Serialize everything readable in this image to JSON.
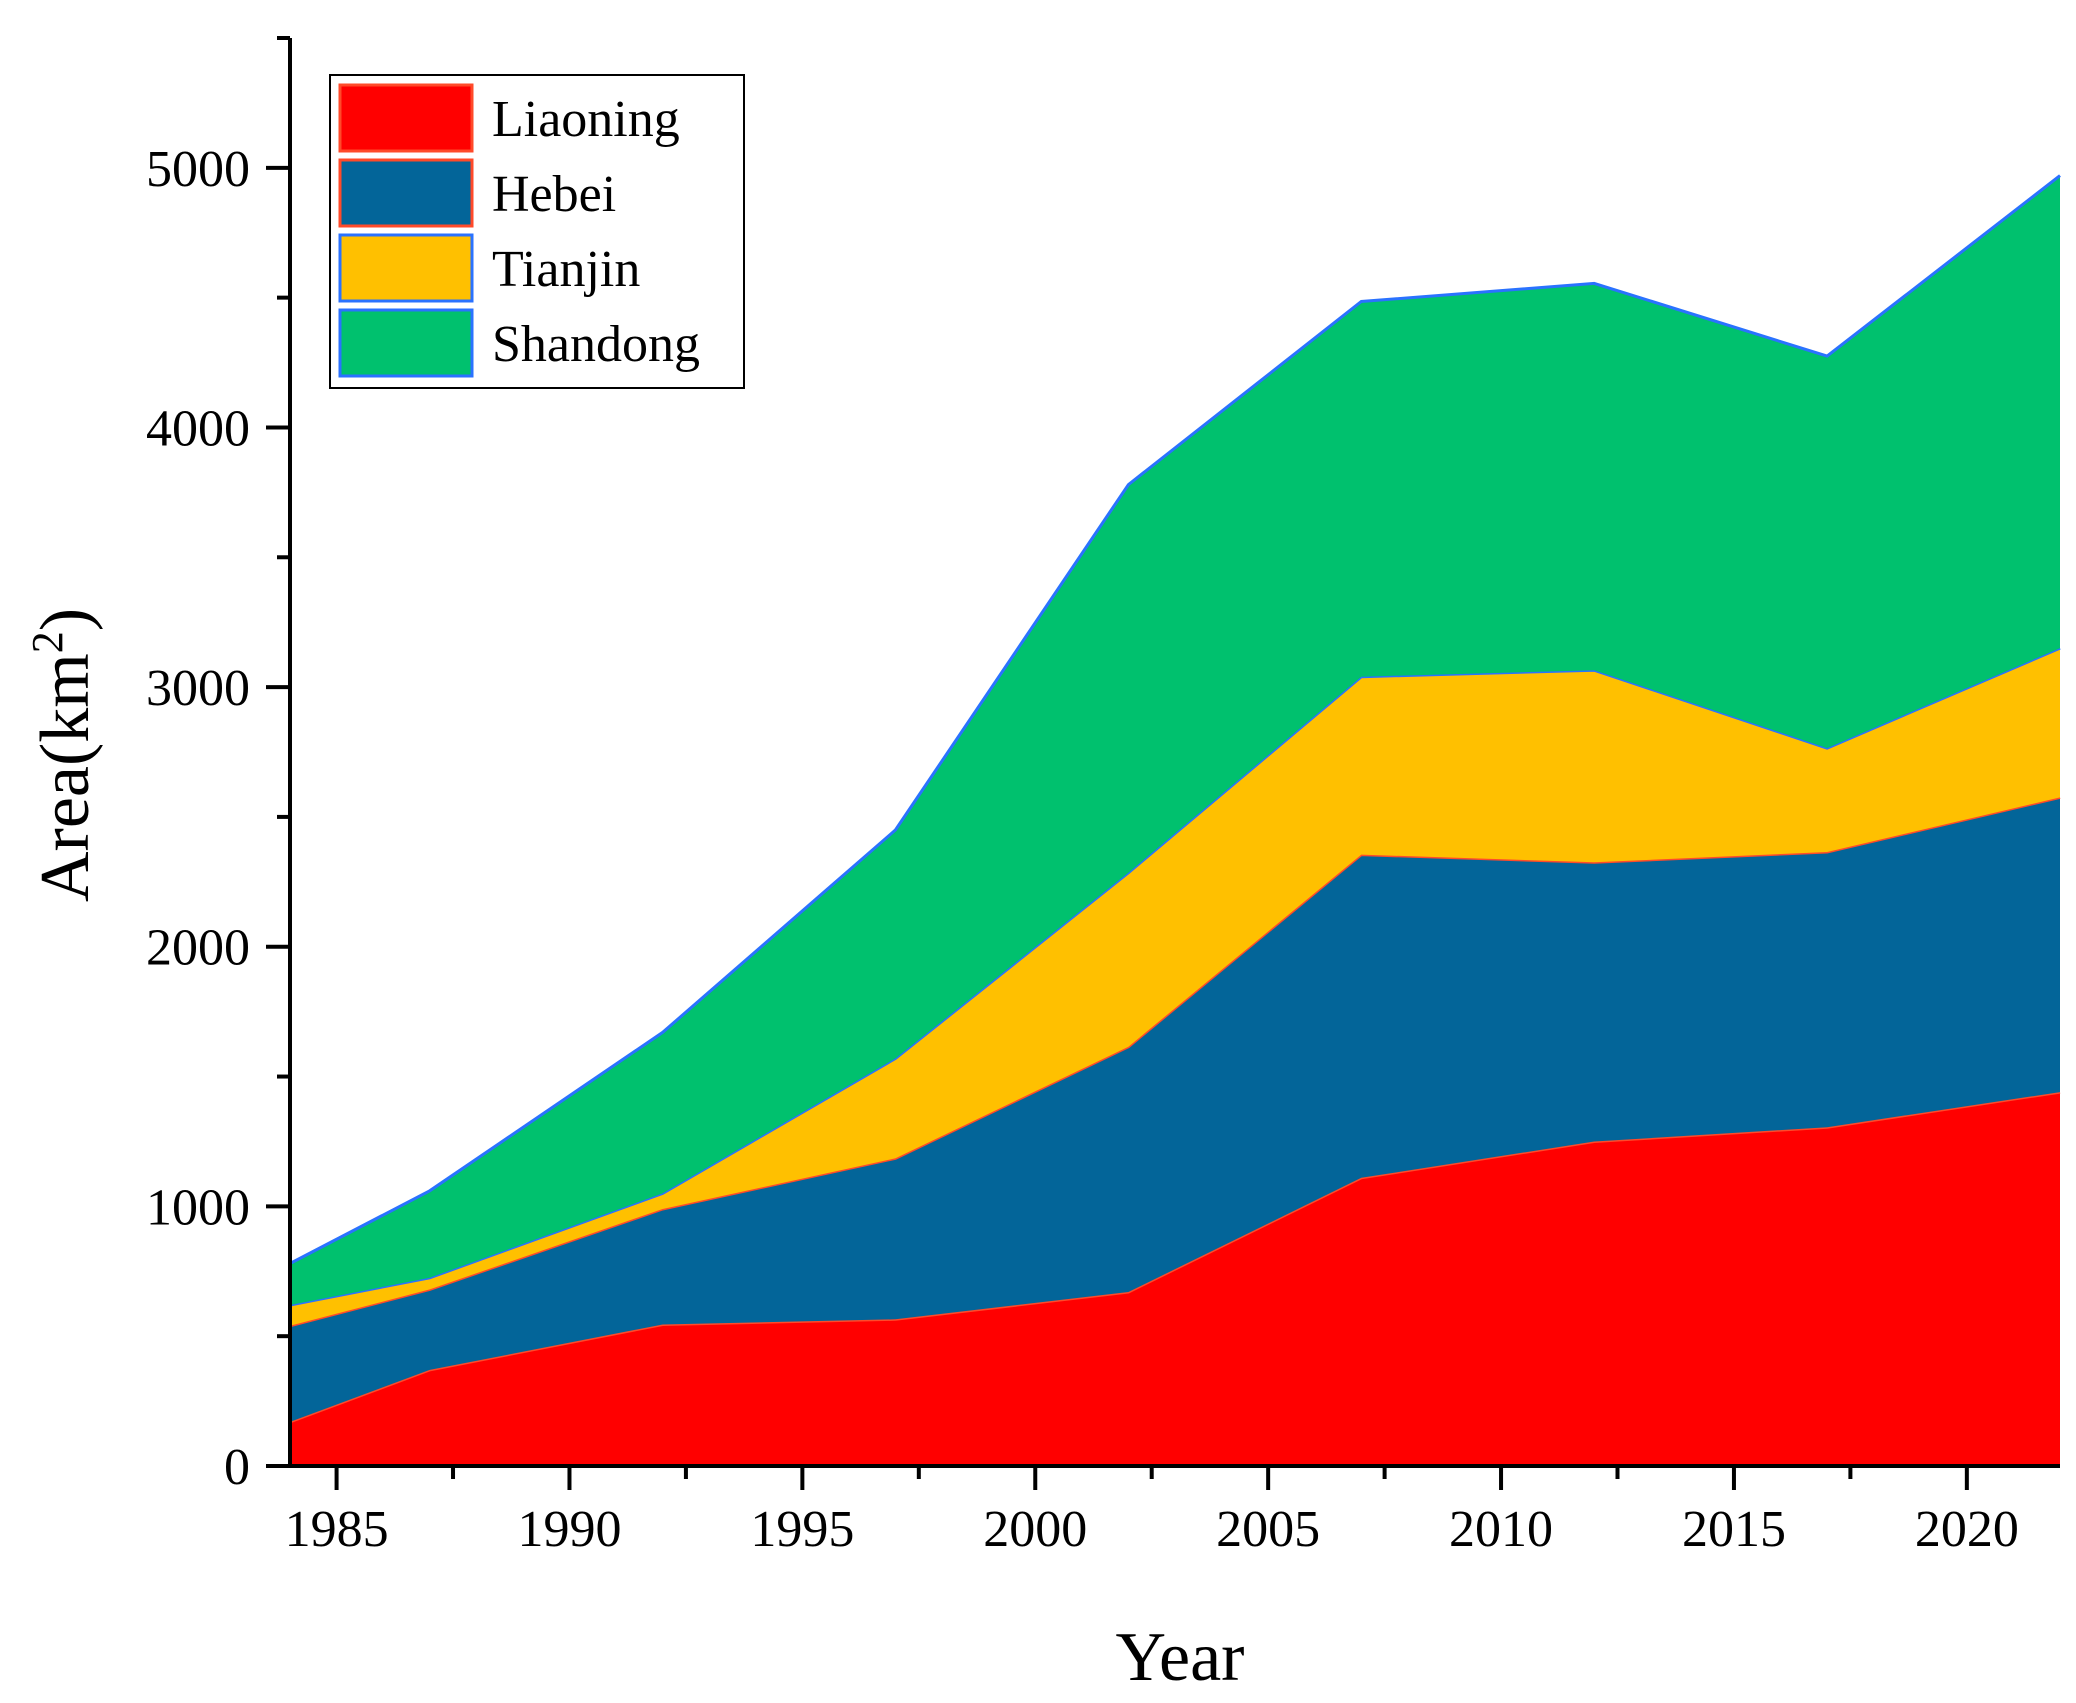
{
  "chart_data": {
    "type": "area",
    "stacked": true,
    "title": "",
    "xlabel": "Year",
    "ylabel_main": "Area(km",
    "ylabel_sup": "2",
    "ylabel_close": ")",
    "x": [
      1984,
      1987,
      1992,
      1997,
      2002,
      2007,
      2012,
      2017,
      2022
    ],
    "xlim": [
      1984,
      2022
    ],
    "ylim": [
      0,
      5500
    ],
    "xticks": [
      1985,
      1990,
      1995,
      2000,
      2005,
      2010,
      2015,
      2020
    ],
    "xtick_labels": [
      "1985",
      "1990",
      "1995",
      "2000",
      "2005",
      "2010",
      "2015",
      "2020"
    ],
    "yticks": [
      0,
      1000,
      2000,
      3000,
      4000,
      5000
    ],
    "ytick_labels": [
      "0",
      "1000",
      "2000",
      "3000",
      "4000",
      "5000"
    ],
    "legend_position": "top-left",
    "series": [
      {
        "name": "Liaoning",
        "color": "#ff0000",
        "edge": "#ff4a2a",
        "values": [
          170,
          370,
          545,
          565,
          670,
          1110,
          1250,
          1305,
          1440
        ]
      },
      {
        "name": "Hebei",
        "color": "#036599",
        "edge": "#ff4a2a",
        "values": [
          370,
          310,
          445,
          620,
          945,
          1245,
          1075,
          1060,
          1135
        ]
      },
      {
        "name": "Tianjin",
        "color": "#ffc000",
        "edge": "#2a72ff",
        "values": [
          80,
          45,
          60,
          385,
          670,
          685,
          740,
          400,
          575
        ]
      },
      {
        "name": "Shandong",
        "color": "#00c16e",
        "edge": "#2a72ff",
        "values": [
          160,
          335,
          620,
          880,
          1495,
          1445,
          1490,
          1510,
          1820
        ]
      }
    ]
  }
}
